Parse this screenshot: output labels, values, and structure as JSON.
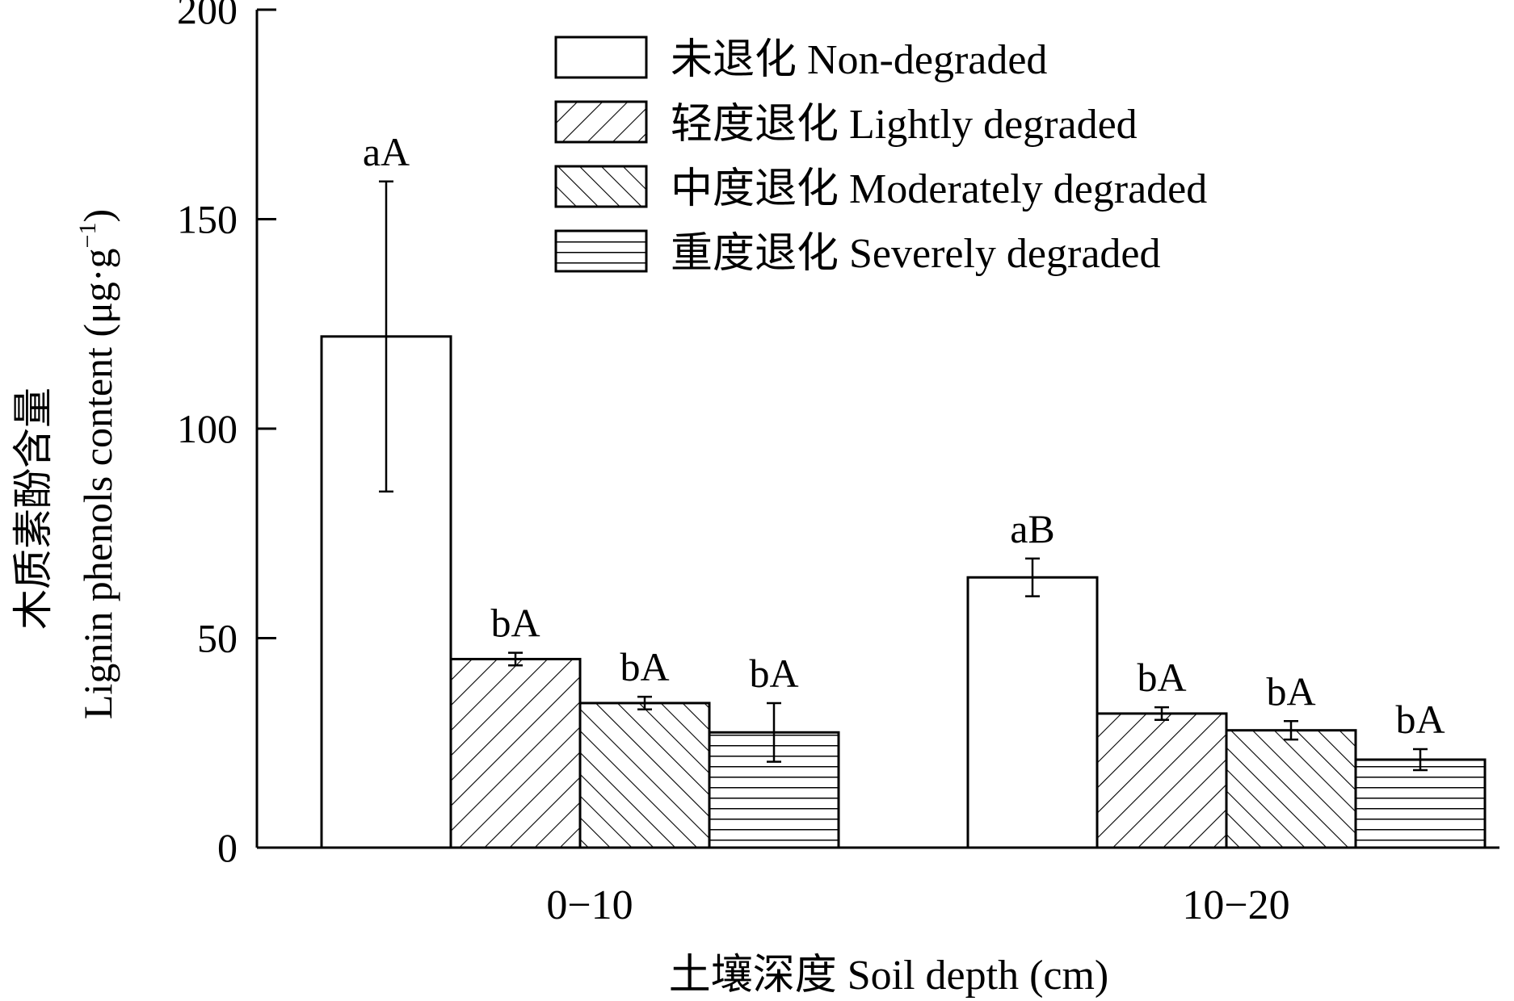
{
  "chart_data": {
    "type": "bar",
    "xlabel": "土壤深度 Soil depth  (cm)",
    "ylabel_cn": "木质素酚含量",
    "ylabel_en": "Lignin phenols content (μg·g",
    "ylabel_sup": "−1",
    "ylabel_close": ")",
    "ylim": [
      0,
      200
    ],
    "yticks": [
      0,
      50,
      100,
      150,
      200
    ],
    "categories": [
      "0−10",
      "10−20"
    ],
    "series": [
      {
        "name": "未退化 Non-degraded",
        "pattern": "none",
        "values": [
          122,
          64.5
        ],
        "errors": [
          37,
          4.5
        ],
        "labels": [
          "aA",
          "aB"
        ]
      },
      {
        "name": "轻度退化 Lightly degraded",
        "pattern": "diag-right",
        "values": [
          45,
          32
        ],
        "errors": [
          1.5,
          1.5
        ],
        "labels": [
          "bA",
          "bA"
        ]
      },
      {
        "name": "中度退化 Moderately degraded",
        "pattern": "diag-left",
        "values": [
          34.5,
          28
        ],
        "errors": [
          1.5,
          2.2
        ],
        "labels": [
          "bA",
          "bA"
        ]
      },
      {
        "name": "重度退化 Severely degraded",
        "pattern": "horizontal",
        "values": [
          27.5,
          21
        ],
        "errors": [
          7,
          2.5
        ],
        "labels": [
          "bA",
          "bA"
        ]
      }
    ],
    "legend_position": "top-right",
    "grid": false
  }
}
